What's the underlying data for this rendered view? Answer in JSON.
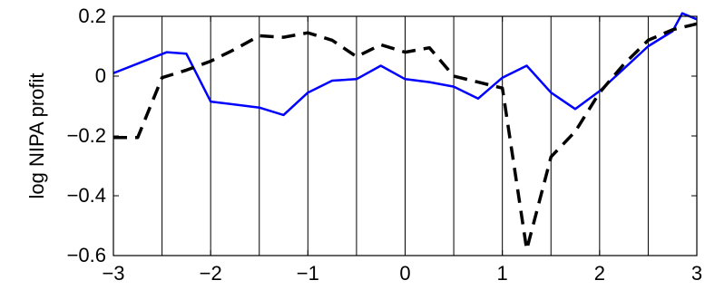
{
  "chart_data": {
    "type": "line",
    "xlabel": "",
    "ylabel": "log NIPA profit",
    "xlim": [
      -3,
      3
    ],
    "ylim": [
      -0.6,
      0.2
    ],
    "xticks": [
      -3,
      -2,
      -1,
      0,
      1,
      2,
      3
    ],
    "xtick_labels": [
      "−3",
      "−2",
      "−1",
      "0",
      "1",
      "2",
      "3"
    ],
    "yticks": [
      0.2,
      0,
      -0.2,
      -0.4,
      -0.6
    ],
    "ytick_labels": [
      "0.2",
      "0",
      "−0.2",
      "−0.4",
      "−0.6"
    ],
    "vertical_lines": [
      -2.5,
      -2,
      -1.5,
      -1,
      -0.5,
      0,
      0.5,
      1,
      1.5,
      2,
      2.5
    ],
    "series": [
      {
        "name": "",
        "color": "#0000ff",
        "style": "solid",
        "x": [
          -3.0,
          -2.45,
          -2.25,
          -2.0,
          -1.5,
          -1.25,
          -1.0,
          -0.75,
          -0.5,
          -0.25,
          0.0,
          0.25,
          0.5,
          0.75,
          1.0,
          1.25,
          1.5,
          1.75,
          2.0,
          2.25,
          2.5,
          2.75,
          2.85,
          3.0
        ],
        "y": [
          0.01,
          0.08,
          0.075,
          -0.085,
          -0.105,
          -0.13,
          -0.055,
          -0.015,
          -0.01,
          0.035,
          -0.01,
          -0.02,
          -0.035,
          -0.075,
          -0.005,
          0.035,
          -0.055,
          -0.11,
          -0.05,
          0.025,
          0.1,
          0.15,
          0.21,
          0.19
        ]
      },
      {
        "name": "",
        "color": "#000000",
        "style": "dashed",
        "x": [
          -3.0,
          -2.75,
          -2.5,
          -2.25,
          -2.0,
          -1.75,
          -1.5,
          -1.25,
          -1.0,
          -0.75,
          -0.5,
          -0.25,
          0.0,
          0.25,
          0.5,
          0.75,
          1.0,
          1.25,
          1.5,
          1.75,
          2.0,
          2.25,
          2.5,
          2.75,
          3.0
        ],
        "y": [
          -0.205,
          -0.205,
          -0.005,
          0.02,
          0.05,
          0.09,
          0.135,
          0.13,
          0.145,
          0.12,
          0.065,
          0.105,
          0.08,
          0.095,
          0.0,
          -0.02,
          -0.04,
          -0.58,
          -0.27,
          -0.185,
          -0.055,
          0.04,
          0.12,
          0.155,
          0.175
        ]
      }
    ]
  }
}
